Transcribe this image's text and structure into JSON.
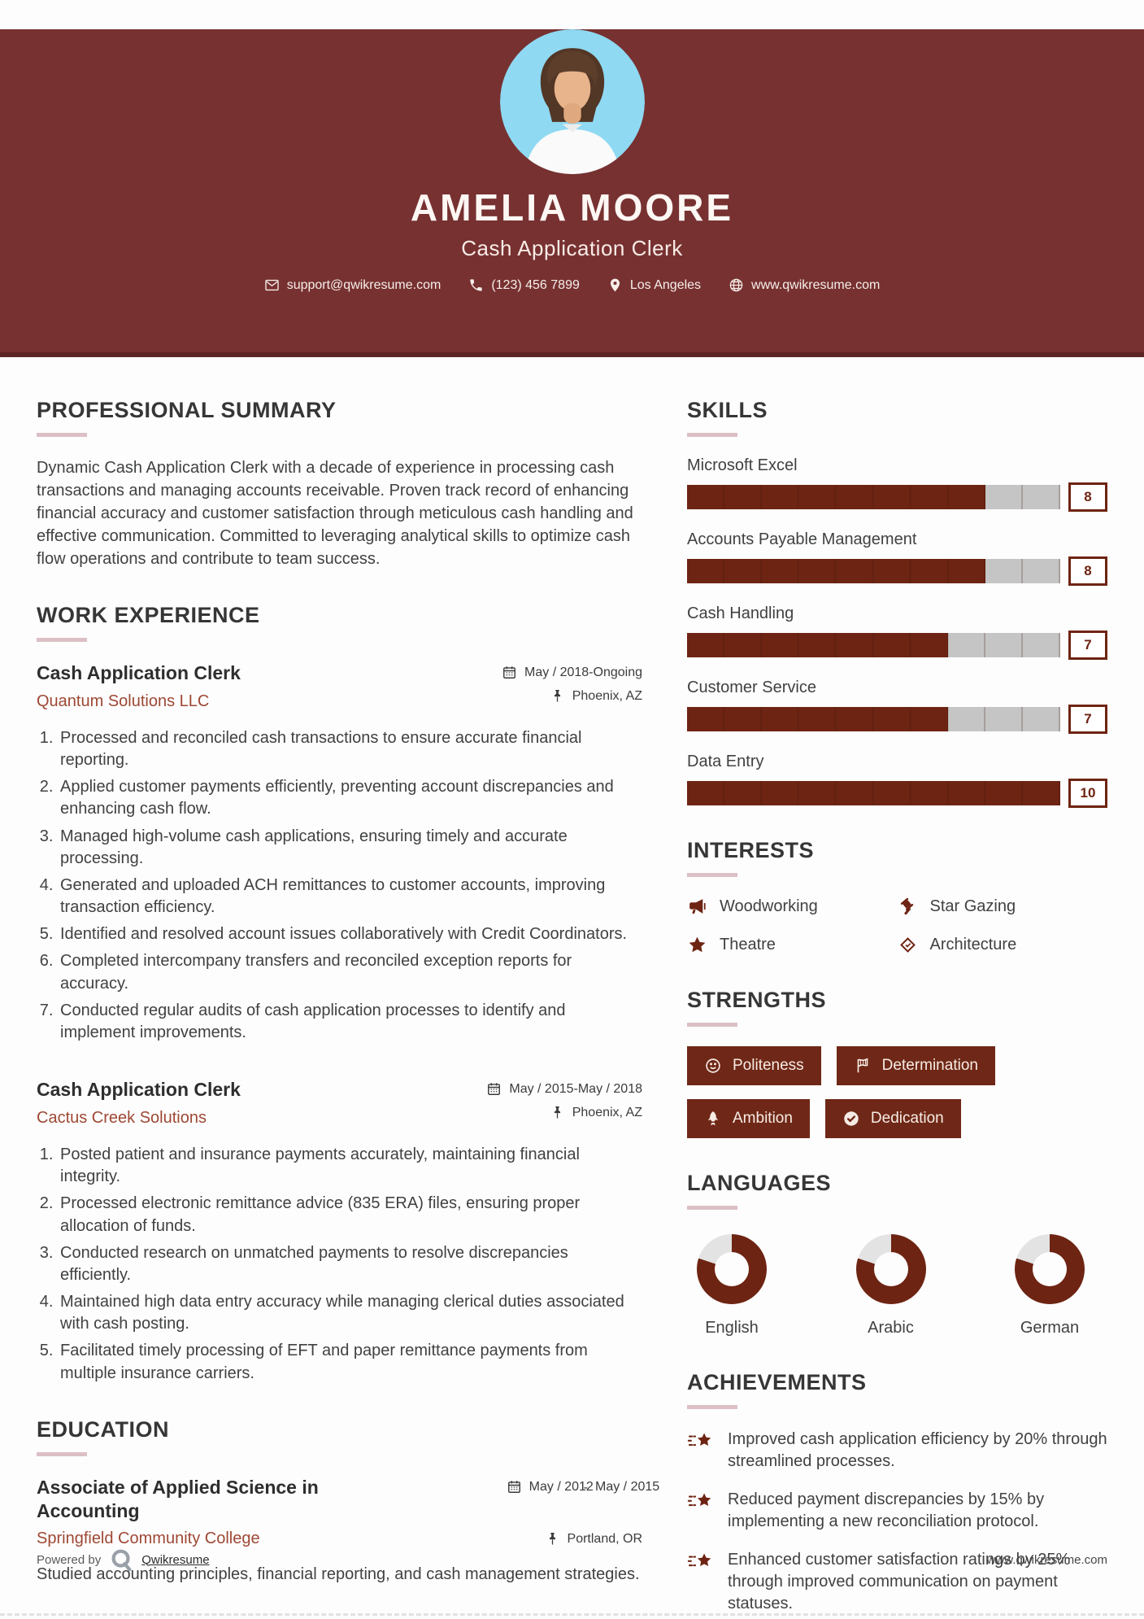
{
  "header": {
    "name": "AMELIA MOORE",
    "title": "Cash Application Clerk",
    "contact": [
      {
        "icon": "email-icon",
        "text": "support@qwikresume.com"
      },
      {
        "icon": "phone-icon",
        "text": "(123) 456 7899"
      },
      {
        "icon": "map-pin-icon",
        "text": "Los Angeles"
      },
      {
        "icon": "globe-icon",
        "text": "www.qwikresume.com"
      }
    ]
  },
  "sections": {
    "summary": {
      "heading": "PROFESSIONAL SUMMARY",
      "text": "Dynamic Cash Application Clerk with a decade of experience in processing cash transactions and managing accounts receivable. Proven track record of enhancing financial accuracy and customer satisfaction through meticulous cash handling and effective communication. Committed to leveraging analytical skills to optimize cash flow operations and contribute to team success."
    },
    "experience": {
      "heading": "WORK EXPERIENCE",
      "jobs": [
        {
          "title": "Cash Application Clerk",
          "company": "Quantum Solutions LLC",
          "dates": "May / 2018-Ongoing",
          "location": "Phoenix, AZ",
          "bullets": [
            "Processed and reconciled cash transactions to ensure accurate financial reporting.",
            "Applied customer payments efficiently, preventing account discrepancies and enhancing cash flow.",
            "Managed high-volume cash applications, ensuring timely and accurate processing.",
            "Generated and uploaded ACH remittances to customer accounts, improving transaction efficiency.",
            "Identified and resolved account issues collaboratively with Credit Coordinators.",
            "Completed intercompany transfers and reconciled exception reports for accuracy.",
            "Conducted regular audits of cash application processes to identify and implement improvements."
          ]
        },
        {
          "title": "Cash Application Clerk",
          "company": "Cactus Creek Solutions",
          "dates": "May / 2015-May / 2018",
          "location": "Phoenix, AZ",
          "bullets": [
            "Posted patient and insurance payments accurately, maintaining financial integrity.",
            "Processed electronic remittance advice (835 ERA) files, ensuring proper allocation of funds.",
            "Conducted research on unmatched payments to resolve discrepancies efficiently.",
            "Maintained high data entry accuracy while managing clerical duties associated with cash posting.",
            "Facilitated timely processing of EFT and paper remittance payments from multiple insurance carriers."
          ]
        }
      ]
    },
    "education": {
      "heading": "EDUCATION",
      "degree": "Associate of Applied Science in Accounting",
      "school": "Springfield Community College",
      "date_from": "May / 2012",
      "date_to": "May / 2015",
      "location": "Portland, OR",
      "description": "Studied accounting principles, financial reporting, and cash management strategies."
    },
    "skills": {
      "heading": "SKILLS",
      "max_score": 10,
      "items": [
        {
          "name": "Microsoft Excel",
          "score": 8
        },
        {
          "name": "Accounts Payable Management",
          "score": 8
        },
        {
          "name": "Cash Handling",
          "score": 7
        },
        {
          "name": "Customer Service",
          "score": 7
        },
        {
          "name": "Data Entry",
          "score": 10
        }
      ]
    },
    "interests": {
      "heading": "INTERESTS",
      "items": [
        {
          "icon": "megaphone-icon",
          "label": "Woodworking"
        },
        {
          "icon": "gavel-icon",
          "label": "Star Gazing"
        },
        {
          "icon": "star-icon",
          "label": "Theatre"
        },
        {
          "icon": "scroll-pen-icon",
          "label": "Architecture"
        }
      ]
    },
    "strengths": {
      "heading": "STRENGTHS",
      "items": [
        {
          "icon": "smiley-icon",
          "label": "Politeness"
        },
        {
          "icon": "flag-icon",
          "label": "Determination"
        },
        {
          "icon": "rocket-icon",
          "label": "Ambition"
        },
        {
          "icon": "check-circle-icon",
          "label": "Dedication"
        }
      ]
    },
    "languages": {
      "heading": "LANGUAGES",
      "items": [
        {
          "name": "English",
          "percent": 80
        },
        {
          "name": "Arabic",
          "percent": 80
        },
        {
          "name": "German",
          "percent": 80
        }
      ]
    },
    "achievements": {
      "heading": "ACHIEVEMENTS",
      "items": [
        "Improved cash application efficiency by 20% through streamlined processes.",
        "Reduced payment discrepancies by 15% by implementing a new reconciliation protocol.",
        "Enhanced customer satisfaction ratings by 25% through improved communication on payment statuses."
      ]
    }
  },
  "footer": {
    "powered_by": "Powered by",
    "brand": "Qwikresume",
    "url": "www.qwikresume.com"
  },
  "colors": {
    "header_background": "#773131",
    "accent_maroon": "#6e2413",
    "company_brick": "#9e4834",
    "heading_rule_pink": "#dcc0c6",
    "bar_grey": "#c5c5c5"
  }
}
